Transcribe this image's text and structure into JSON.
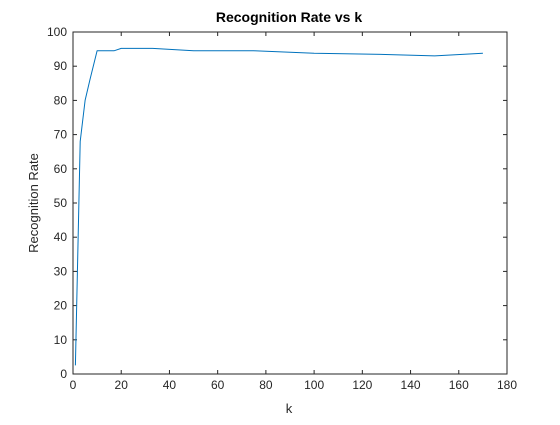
{
  "chart_data": {
    "type": "line",
    "title": "Recognition Rate vs k",
    "xlabel": "k",
    "ylabel": "Recognition Rate",
    "xlim": [
      0,
      180
    ],
    "ylim": [
      0,
      100
    ],
    "xticks": [
      0,
      20,
      40,
      60,
      80,
      100,
      120,
      140,
      160,
      180
    ],
    "yticks": [
      0,
      10,
      20,
      30,
      40,
      50,
      60,
      70,
      80,
      90,
      100
    ],
    "grid": false,
    "series": [
      {
        "color": "#0072BD",
        "x": [
          1,
          3,
          5,
          7,
          10,
          15,
          17,
          20,
          25,
          33,
          50,
          75,
          100,
          125,
          150,
          170
        ],
        "y": [
          2.5,
          68,
          80,
          86,
          94.5,
          94.5,
          94.5,
          95.2,
          95.2,
          95.2,
          94.5,
          94.5,
          93.8,
          93.5,
          93,
          93.8
        ]
      }
    ]
  }
}
